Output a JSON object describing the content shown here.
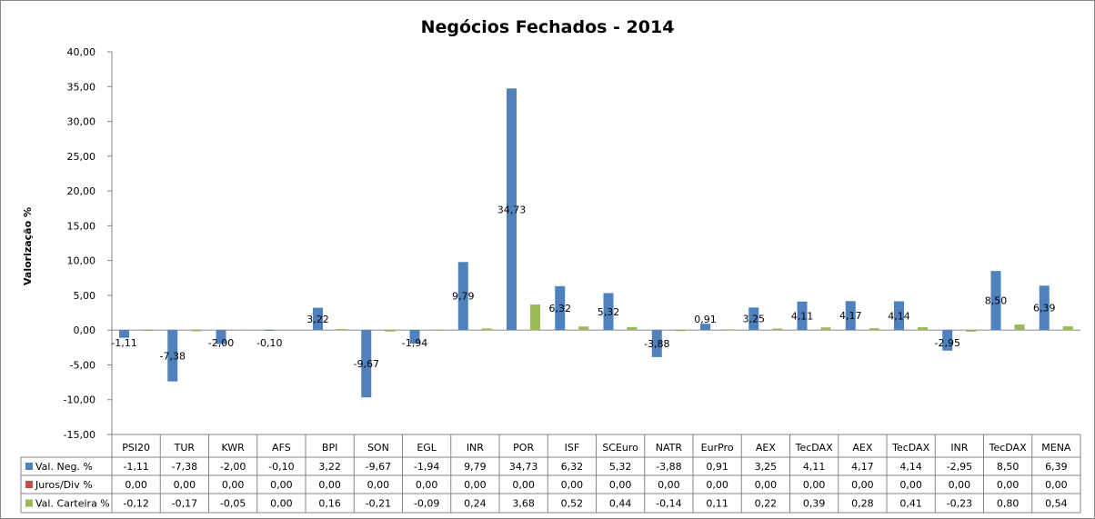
{
  "chart_data": {
    "type": "bar",
    "title": "Negócios Fechados - 2014",
    "ylabel": "Valorização %",
    "xlabel": "",
    "ylim": [
      -15,
      40
    ],
    "yticks": [
      "-15,00",
      "-10,00",
      "-5,00",
      "0,00",
      "5,00",
      "10,00",
      "15,00",
      "20,00",
      "25,00",
      "30,00",
      "35,00",
      "40,00"
    ],
    "ytick_values": [
      -15,
      -10,
      -5,
      0,
      5,
      10,
      15,
      20,
      25,
      30,
      35,
      40
    ],
    "grid": false,
    "legend": "data-table",
    "categories": [
      "PSI20",
      "TUR",
      "KWR",
      "AFS",
      "BPI",
      "SON",
      "EGL",
      "INR",
      "POR",
      "ISF",
      "SCEuro",
      "NATR",
      "EurPro",
      "AEX",
      "TecDAX",
      "AEX",
      "TecDAX",
      "INR",
      "TecDAX",
      "MENA"
    ],
    "series": [
      {
        "name": "Val. Neg. %",
        "color": "#4f81bd",
        "values": [
          -1.11,
          -7.38,
          -2.0,
          -0.1,
          3.22,
          -9.67,
          -1.94,
          9.79,
          34.73,
          6.32,
          5.32,
          -3.88,
          0.91,
          3.25,
          4.11,
          4.17,
          4.14,
          -2.95,
          8.5,
          6.39
        ],
        "labels": [
          "-1,11",
          "-7,38",
          "-2,00",
          "-0,10",
          "3,22",
          "-9,67",
          "-1,94",
          "9,79",
          "34,73",
          "6,32",
          "5,32",
          "-3,88",
          "0,91",
          "3,25",
          "4,11",
          "4,17",
          "4,14",
          "-2,95",
          "8,50",
          "6,39"
        ]
      },
      {
        "name": "Juros/Div %",
        "color": "#c0504d",
        "values": [
          0,
          0,
          0,
          0,
          0,
          0,
          0,
          0,
          0,
          0,
          0,
          0,
          0,
          0,
          0,
          0,
          0,
          0,
          0,
          0
        ],
        "labels": [
          "0,00",
          "0,00",
          "0,00",
          "0,00",
          "0,00",
          "0,00",
          "0,00",
          "0,00",
          "0,00",
          "0,00",
          "0,00",
          "0,00",
          "0,00",
          "0,00",
          "0,00",
          "0,00",
          "0,00",
          "0,00",
          "0,00",
          "0,00"
        ]
      },
      {
        "name": "Val. Carteira %",
        "color": "#9bbb59",
        "values": [
          -0.12,
          -0.17,
          -0.05,
          0.0,
          0.16,
          -0.21,
          -0.09,
          0.24,
          3.68,
          0.52,
          0.44,
          -0.14,
          0.11,
          0.22,
          0.39,
          0.28,
          0.41,
          -0.23,
          0.8,
          0.54
        ],
        "labels": [
          "-0,12",
          "-0,17",
          "-0,05",
          "0,00",
          "0,16",
          "-0,21",
          "-0,09",
          "0,24",
          "3,68",
          "0,52",
          "0,44",
          "-0,14",
          "0,11",
          "0,22",
          "0,39",
          "0,28",
          "0,41",
          "-0,23",
          "0,80",
          "0,54"
        ]
      }
    ],
    "negative_label_color": "#ff0000"
  }
}
